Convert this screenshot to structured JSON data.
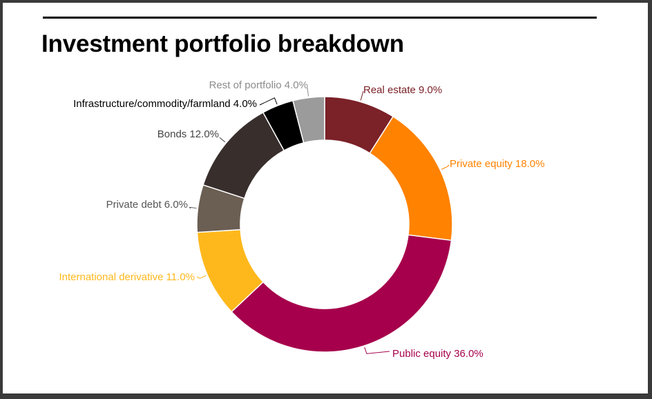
{
  "chart_data": {
    "type": "pie",
    "variant": "donut",
    "title": "Investment portfolio breakdown",
    "unit": "%",
    "slices": [
      {
        "label": "Real estate",
        "value": 9.0,
        "display": "Real estate 9.0%",
        "color": "#7B2128"
      },
      {
        "label": "Private equity",
        "value": 18.0,
        "display": "Private equity 18.0%",
        "color": "#FF8200"
      },
      {
        "label": "Public equity",
        "value": 36.0,
        "display": "Public equity 36.0%",
        "color": "#A6004C"
      },
      {
        "label": "International derivative",
        "value": 11.0,
        "display": "International derivative 11.0%",
        "color": "#FFB81C"
      },
      {
        "label": "Private debt",
        "value": 6.0,
        "display": "Private debt 6.0%",
        "color": "#6B5E53"
      },
      {
        "label": "Bonds",
        "value": 12.0,
        "display": "Bonds 12.0%",
        "color": "#382F2D"
      },
      {
        "label": "Infrastructure/commodity/farmland",
        "value": 4.0,
        "display": "Infrastructure/commodity/farmland 4.0%",
        "color": "#000000"
      },
      {
        "label": "Rest of portfolio",
        "value": 4.0,
        "display": "Rest of portfolio 4.0%",
        "color": "#9B9B9B"
      }
    ],
    "label_colors": {
      "Real estate": "#7B2128",
      "Private equity": "#FF8200",
      "Public equity": "#A6004C",
      "International derivative": "#FFB81C",
      "Private debt": "#555555",
      "Bonds": "#444444",
      "Infrastructure/commodity/farmland": "#000000",
      "Rest of portfolio": "#8C8C8C"
    },
    "legend": "none"
  }
}
